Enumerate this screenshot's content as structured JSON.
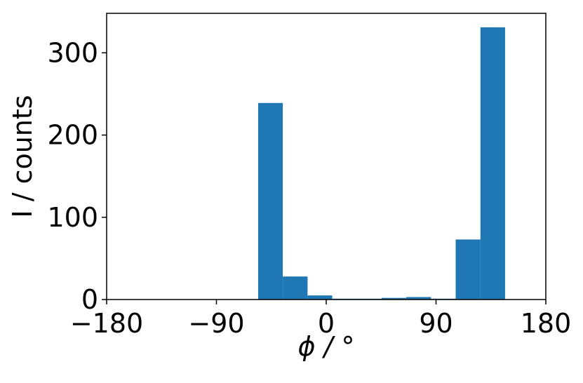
{
  "chart_data": {
    "type": "histogram",
    "x_label": "ϕ / °",
    "y_label": "I / counts",
    "bins": [
      -55.8,
      -35.6,
      -15.3,
      4.9,
      25.2,
      45.4,
      65.6,
      85.9,
      106.1,
      126.4,
      146.6
    ],
    "values": [
      239,
      28,
      5,
      1,
      1,
      2,
      3,
      1,
      73,
      331
    ],
    "color": "#1f77b4",
    "xlim": [
      -180,
      180
    ],
    "xticks": [
      {
        "value": -180,
        "label": "−180"
      },
      {
        "value": -90,
        "label": "−90"
      },
      0,
      90,
      180
    ],
    "ylim": [
      0,
      348
    ],
    "yticks": [
      0,
      100,
      200,
      300
    ]
  }
}
